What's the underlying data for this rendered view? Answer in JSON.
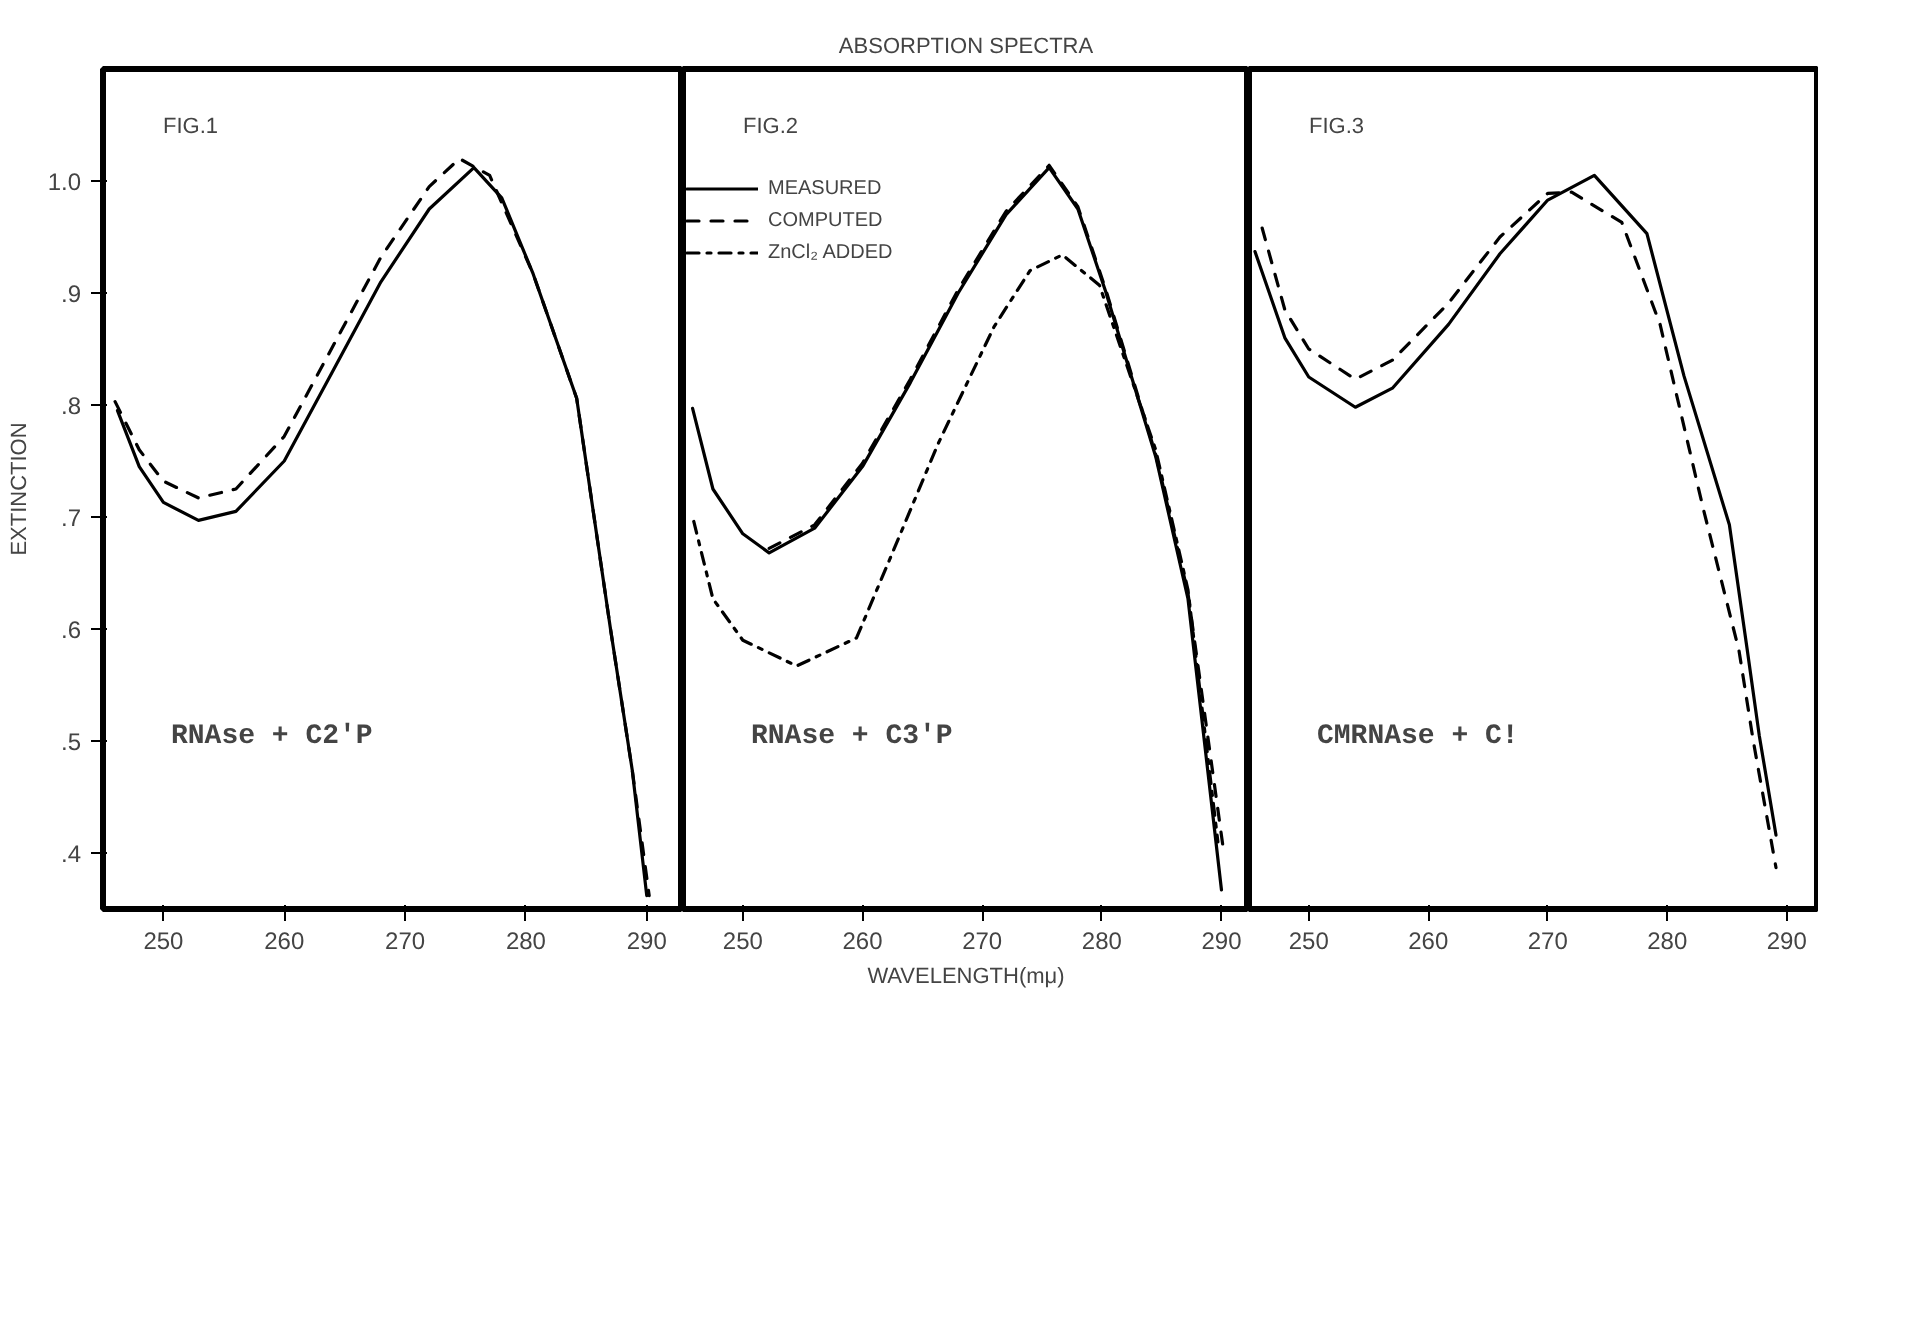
{
  "chart_data": [
    {
      "type": "line",
      "ylabel": "EXTINCTION",
      "annotations": [
        "FIG.1",
        "RNAse + C2'P"
      ],
      "xlim": [
        245,
        293
      ],
      "xticks": [
        250,
        260,
        270,
        280,
        290
      ],
      "ylim": [
        0.35,
        1.1
      ],
      "yticks": [
        {
          "value": 0.4,
          "label": ".4"
        },
        {
          "value": 0.5,
          "label": ".5"
        },
        {
          "value": 0.6,
          "label": ".6"
        },
        {
          "value": 0.7,
          "label": ".7"
        },
        {
          "value": 0.8,
          "label": ".8"
        },
        {
          "value": 0.9,
          "label": ".9"
        },
        {
          "value": 1.0,
          "label": "1.0"
        }
      ],
      "grid": false,
      "series": [
        {
          "color": "#000000",
          "line_style": "solid",
          "x": [
            246.2,
            248,
            250,
            252.9,
            256,
            260,
            264,
            268,
            272,
            275.7,
            278,
            280.6,
            284.2,
            287,
            288.8,
            290
          ],
          "values": [
            0.795,
            0.745,
            0.713,
            0.697,
            0.705,
            0.75,
            0.83,
            0.91,
            0.975,
            1.012,
            0.985,
            0.917,
            0.806,
            0.6,
            0.474,
            0.362
          ]
        },
        {
          "color": "#000000",
          "line_style": "dashed",
          "x": [
            246,
            248,
            250,
            252.9,
            256,
            260,
            264,
            268,
            272,
            274.5,
            277,
            280.6,
            284.2,
            287,
            288.8,
            290.2
          ],
          "values": [
            0.803,
            0.76,
            0.732,
            0.717,
            0.725,
            0.772,
            0.852,
            0.932,
            0.995,
            1.02,
            1.005,
            0.917,
            0.806,
            0.6,
            0.474,
            0.362
          ]
        }
      ]
    },
    {
      "type": "line",
      "title": "ABSORPTION SPECTRA",
      "xlabel": "WAVELENGTH(mμ)",
      "legend": "top left",
      "tick_labels": "x",
      "annotations": [
        "FIG.2",
        "RNAse + C3'P"
      ],
      "xlim": [
        245,
        292.3
      ],
      "xticks": [
        250,
        260,
        270,
        280,
        290
      ],
      "ylim": [
        0.35,
        1.1
      ],
      "grid": false,
      "series": [
        {
          "name": "MEASURED",
          "color": "#000000",
          "line_style": "solid",
          "x": [
            245.8,
            247.5,
            250,
            252.2,
            256,
            260,
            264,
            268,
            272,
            275.6,
            278,
            280.3,
            284.5,
            287.2,
            290
          ],
          "values": [
            0.797,
            0.725,
            0.685,
            0.668,
            0.69,
            0.745,
            0.82,
            0.9,
            0.97,
            1.012,
            0.975,
            0.902,
            0.754,
            0.627,
            0.367
          ]
        },
        {
          "name": "COMPUTED",
          "color": "#000000",
          "line_style": "dashed",
          "x": [
            252.2,
            256,
            260,
            264,
            268,
            272,
            275.6,
            278,
            280.3,
            284.5,
            287.2,
            290.2
          ],
          "values": [
            0.672,
            0.693,
            0.748,
            0.823,
            0.903,
            0.973,
            1.014,
            0.977,
            0.904,
            0.756,
            0.632,
            0.4
          ]
        },
        {
          "name": "ZnCl₂ ADDED",
          "color": "#000000",
          "line_style": "dashdot",
          "x": [
            245.9,
            247.5,
            250,
            254.5,
            259.5,
            262.7,
            266.3,
            271,
            274,
            276.7,
            279.8,
            284.5,
            287.2,
            289.7
          ],
          "values": [
            0.696,
            0.627,
            0.59,
            0.567,
            0.592,
            0.673,
            0.765,
            0.87,
            0.92,
            0.934,
            0.907,
            0.76,
            0.635,
            0.41
          ]
        }
      ]
    },
    {
      "type": "line",
      "tick_labels": "x",
      "annotations": [
        "FIG.3",
        "CMRNAse + C!"
      ],
      "xlim": [
        245,
        292.7
      ],
      "xticks": [
        250,
        260,
        270,
        280,
        290
      ],
      "ylim": [
        0.35,
        1.1
      ],
      "grid": false,
      "series": [
        {
          "color": "#000000",
          "line_style": "solid",
          "x": [
            245.5,
            248,
            250,
            253.9,
            257,
            261.7,
            266,
            270,
            273.9,
            278.3,
            281.4,
            285.2,
            286.7,
            287.7,
            289.1
          ],
          "values": [
            0.937,
            0.86,
            0.825,
            0.798,
            0.815,
            0.872,
            0.935,
            0.983,
            1.005,
            0.953,
            0.826,
            0.693,
            0.581,
            0.505,
            0.416
          ]
        },
        {
          "color": "#000000",
          "line_style": "dashed",
          "x": [
            246.1,
            248,
            250,
            253.9,
            257,
            261.7,
            266,
            270,
            272,
            276.2,
            279.4,
            283,
            286,
            287.2,
            289.1
          ],
          "values": [
            0.958,
            0.885,
            0.85,
            0.823,
            0.84,
            0.891,
            0.95,
            0.989,
            0.99,
            0.963,
            0.872,
            0.708,
            0.581,
            0.5,
            0.387
          ]
        }
      ]
    }
  ]
}
